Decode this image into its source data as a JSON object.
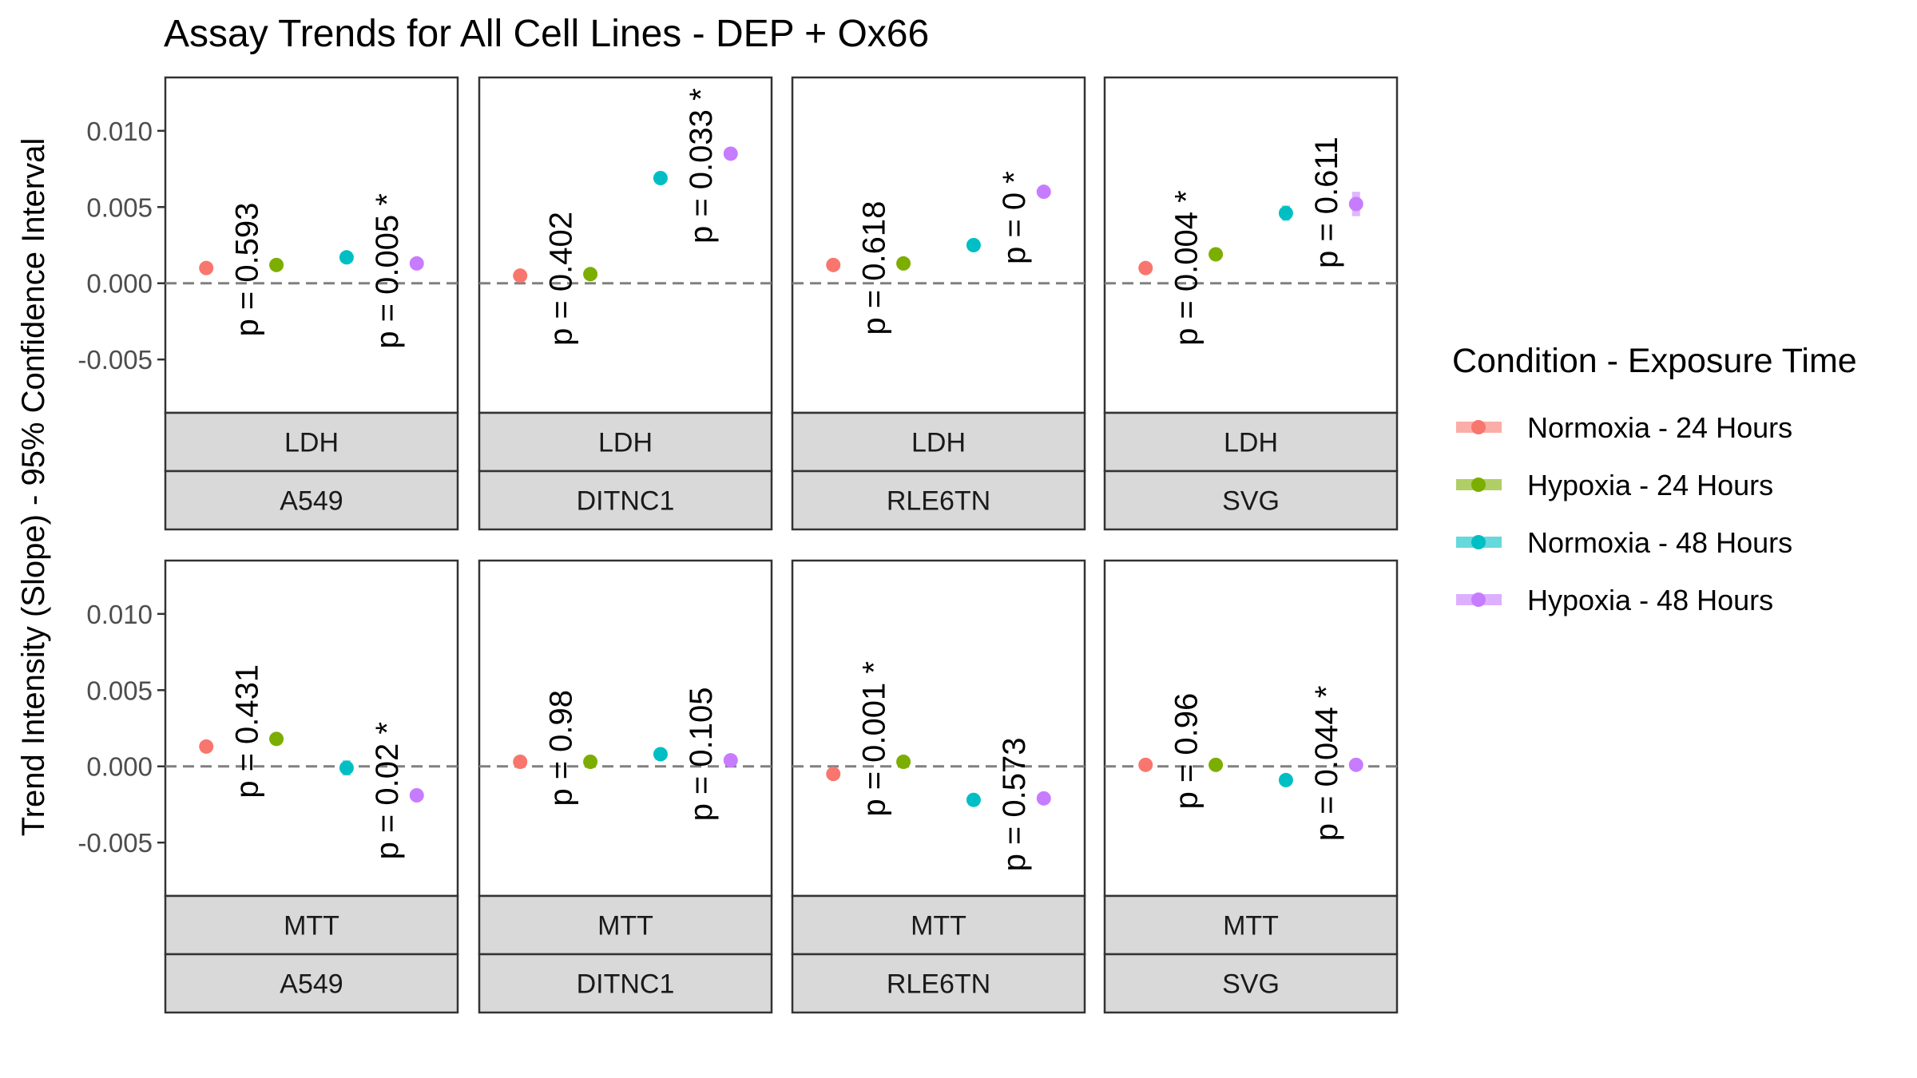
{
  "chart_data": {
    "type": "scatter",
    "title": "Assay Trends for All Cell Lines - DEP + Ox66",
    "ylabel": "Trend Intensity (Slope) - 95% Confidence Interval",
    "xlabel": "",
    "ylim": [
      -0.0085,
      0.0135
    ],
    "yticks": [
      "0.010",
      "0.005",
      "0.000",
      "-0.005"
    ],
    "ytick_values": [
      0.01,
      0.005,
      0.0,
      -0.005
    ],
    "zero_line": true,
    "grid": false,
    "legend": {
      "title": "Condition - Exposure Time",
      "placement": "right",
      "entries": [
        {
          "label": "Normoxia - 24 Hours",
          "color": "#F8766D"
        },
        {
          "label": "Hypoxia - 24 Hours",
          "color": "#7CAE00"
        },
        {
          "label": "Normoxia - 48 Hours",
          "color": "#00BFC4"
        },
        {
          "label": "Hypoxia - 48 Hours",
          "color": "#C77CFF"
        }
      ]
    },
    "panels": [
      {
        "assay": "LDH",
        "cell_line": "A549",
        "values": [
          0.001,
          0.0012,
          0.0017,
          0.0013
        ],
        "ci": [
          0.0002,
          0.0002,
          0.0002,
          0.0002
        ],
        "pvalues": [
          "p = 0.593",
          "p = 0.005 *"
        ],
        "label_anchor": [
          0.0009,
          0.0008
        ]
      },
      {
        "assay": "LDH",
        "cell_line": "DITNC1",
        "values": [
          0.0005,
          0.0006,
          0.0069,
          0.0085
        ],
        "ci": [
          0.0002,
          0.0002,
          0.0002,
          0.0004
        ],
        "pvalues": [
          "p = 0.402",
          "p = 0.033 *"
        ],
        "label_anchor": [
          0.0003,
          0.0077
        ]
      },
      {
        "assay": "LDH",
        "cell_line": "RLE6TN",
        "values": [
          0.0012,
          0.0013,
          0.0025,
          0.006
        ],
        "ci": [
          0.0002,
          0.0002,
          0.0002,
          0.0002
        ],
        "pvalues": [
          "p = 0.618",
          "p = 0 *"
        ],
        "label_anchor": [
          0.001,
          0.0043
        ]
      },
      {
        "assay": "LDH",
        "cell_line": "SVG",
        "values": [
          0.001,
          0.0019,
          0.0046,
          0.0052
        ],
        "ci": [
          0.0002,
          0.0002,
          0.0005,
          0.0008
        ],
        "pvalues": [
          "p = 0.004 *",
          "p = 0.611"
        ],
        "label_anchor": [
          0.001,
          0.0053
        ]
      },
      {
        "assay": "MTT",
        "cell_line": "A549",
        "values": [
          0.0013,
          0.0018,
          -0.0001,
          -0.0019
        ],
        "ci": [
          0.0002,
          0.0002,
          0.0005,
          0.0002
        ],
        "pvalues": [
          "p = 0.431",
          "p = 0.02 *"
        ],
        "label_anchor": [
          0.0023,
          -0.0016
        ]
      },
      {
        "assay": "MTT",
        "cell_line": "DITNC1",
        "values": [
          0.0003,
          0.0003,
          0.0008,
          0.0004
        ],
        "ci": [
          0.0003,
          0.0002,
          0.0003,
          0.0003
        ],
        "pvalues": [
          "p = 0.98",
          "p = 0.105"
        ],
        "label_anchor": [
          0.0012,
          0.0008
        ]
      },
      {
        "assay": "MTT",
        "cell_line": "RLE6TN",
        "values": [
          -0.0005,
          0.0003,
          -0.0022,
          -0.0021
        ],
        "ci": [
          0.0003,
          0.0002,
          0.0003,
          0.0003
        ],
        "pvalues": [
          "p = 0.001 *",
          "p = 0.573"
        ],
        "label_anchor": [
          0.0018,
          -0.0025
        ]
      },
      {
        "assay": "MTT",
        "cell_line": "SVG",
        "values": [
          0.0001,
          0.0001,
          -0.0009,
          0.0001
        ],
        "ci": [
          0.0002,
          0.0002,
          0.0002,
          0.0002
        ],
        "pvalues": [
          "p = 0.96",
          "p = 0.044 *"
        ],
        "label_anchor": [
          0.001,
          0.0002
        ]
      }
    ]
  }
}
